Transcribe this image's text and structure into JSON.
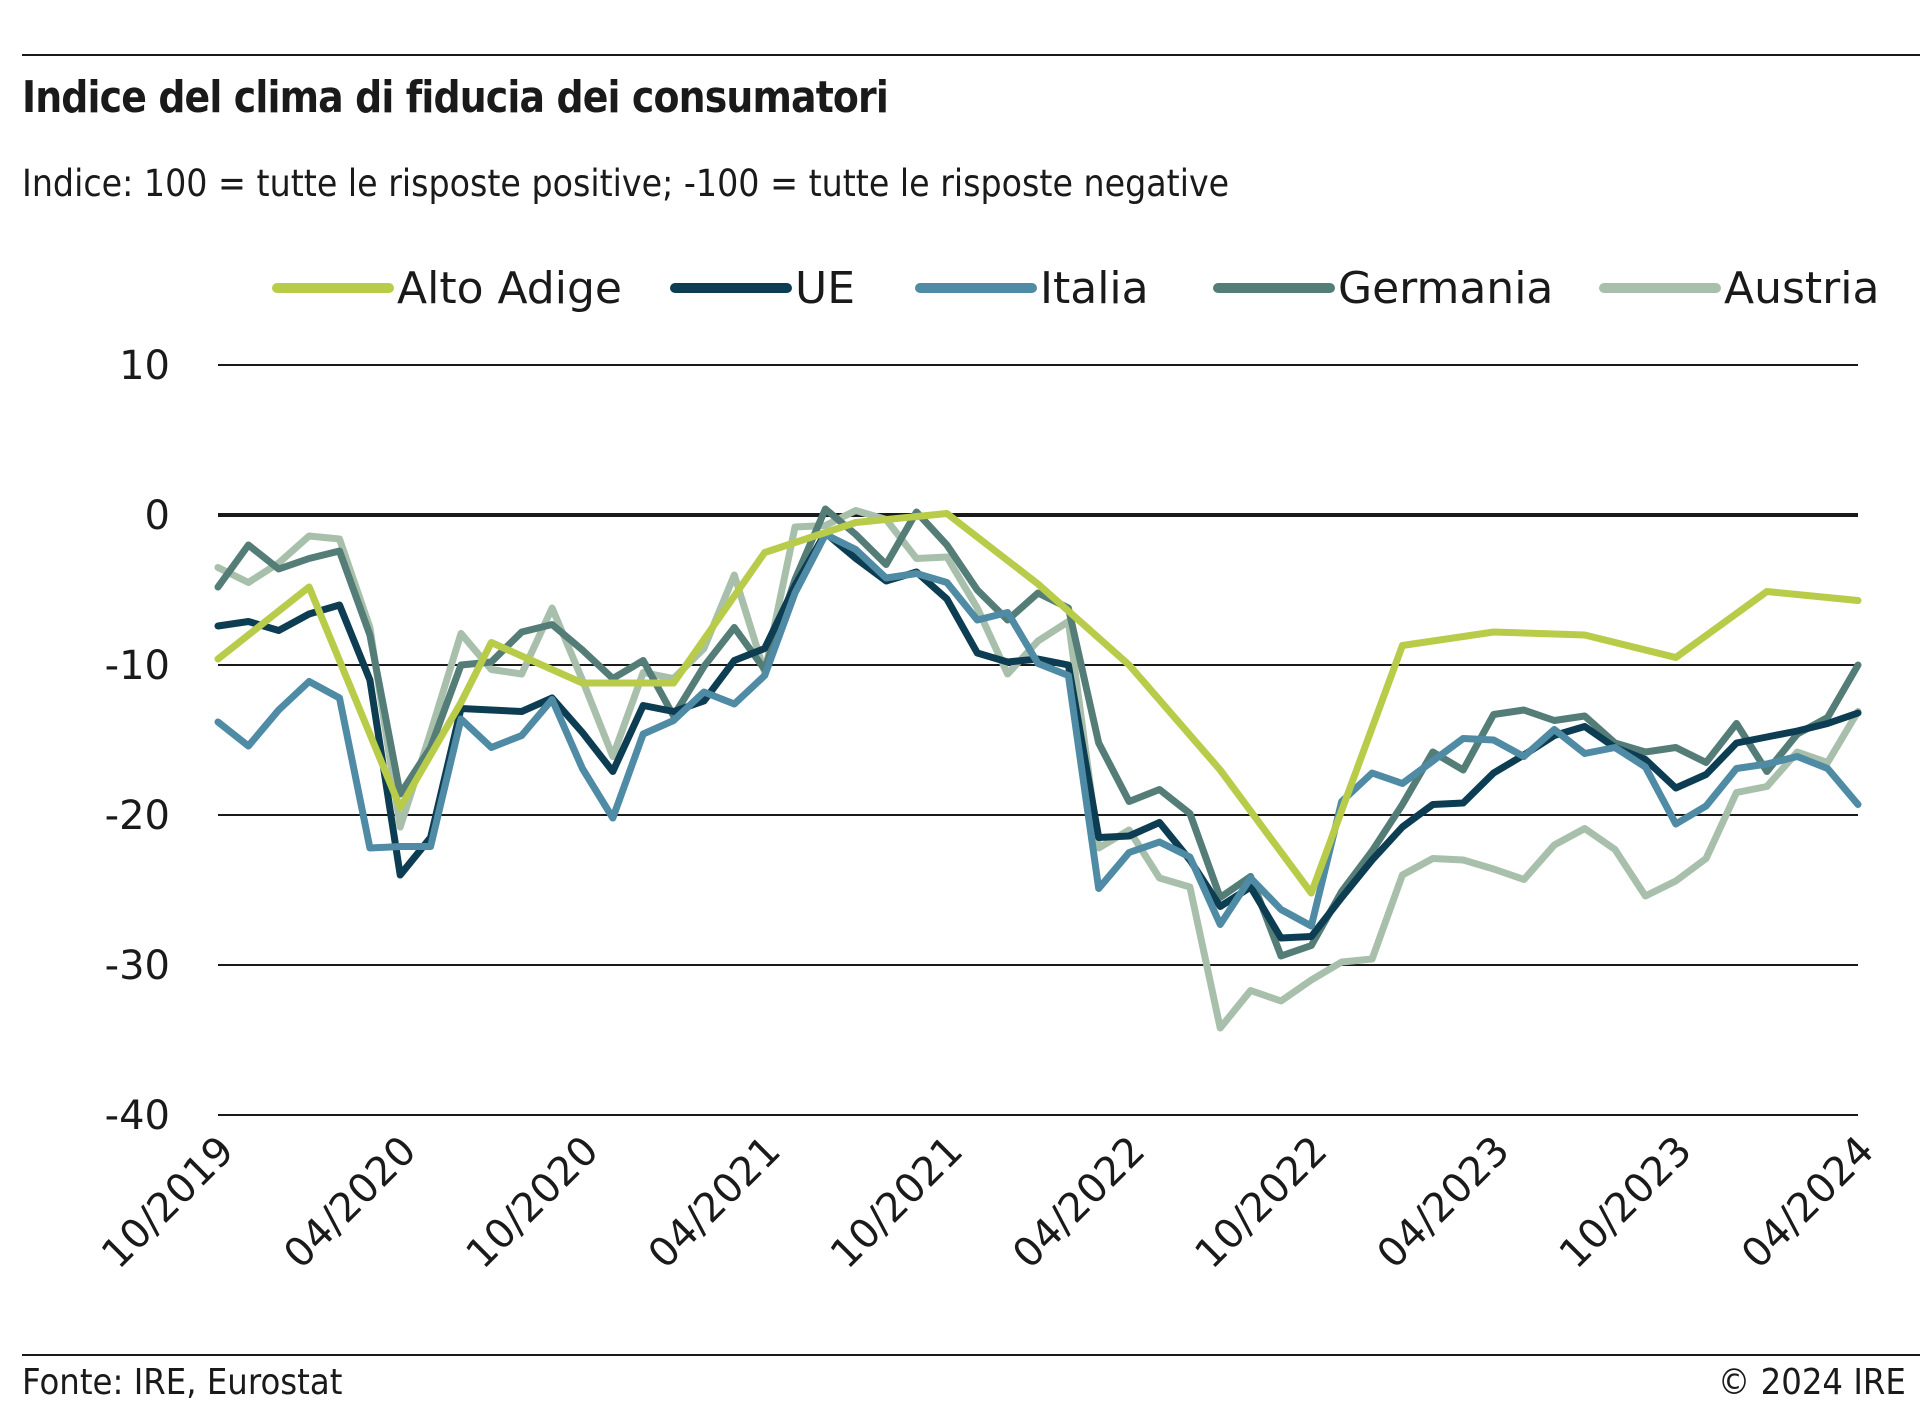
{
  "header": {
    "title": "Indice del clima di fiducia dei consumatori",
    "subtitle": "Indice: 100 = tutte le risposte positive; -100 =  tutte le risposte negative"
  },
  "footer": {
    "source": "Fonte: IRE, Eurostat",
    "copyright": "© 2024 IRE"
  },
  "chart_data": {
    "type": "line",
    "title": "Indice del clima di fiducia dei consumatori",
    "subtitle": "Indice: 100 = tutte le risposte positive; -100 =  tutte le risposte negative",
    "xlabel": "",
    "ylabel": "",
    "ylim": [
      -40,
      10
    ],
    "yticks": [
      10,
      0,
      -10,
      -20,
      -30,
      -40
    ],
    "xlim": [
      "2019-10",
      "2024-04"
    ],
    "xticks": [
      {
        "month": "2019-10",
        "label": "10/2019"
      },
      {
        "month": "2020-04",
        "label": "04/2020"
      },
      {
        "month": "2020-10",
        "label": "10/2020"
      },
      {
        "month": "2021-04",
        "label": "04/2021"
      },
      {
        "month": "2021-10",
        "label": "10/2021"
      },
      {
        "month": "2022-04",
        "label": "04/2022"
      },
      {
        "month": "2022-10",
        "label": "10/2022"
      },
      {
        "month": "2023-04",
        "label": "04/2023"
      },
      {
        "month": "2023-10",
        "label": "10/2023"
      },
      {
        "month": "2024-04",
        "label": "04/2024"
      }
    ],
    "grid": true,
    "legend_position": "top",
    "series": [
      {
        "name": "Alto Adige",
        "color": "#b8cc4a",
        "points": [
          [
            "2019-10",
            -9.6
          ],
          [
            "2020-01",
            -4.8
          ],
          [
            "2020-04",
            -19.5
          ],
          [
            "2020-06",
            -12.5
          ],
          [
            "2020-07",
            -8.5
          ],
          [
            "2020-10",
            -11.2
          ],
          [
            "2021-01",
            -11.2
          ],
          [
            "2021-04",
            -2.5
          ],
          [
            "2021-07",
            -0.5
          ],
          [
            "2021-10",
            0.1
          ],
          [
            "2022-01",
            -4.6
          ],
          [
            "2022-04",
            -10.0
          ],
          [
            "2022-07",
            -17.0
          ],
          [
            "2022-10",
            -25.2
          ],
          [
            "2023-01",
            -8.7
          ],
          [
            "2023-04",
            -7.8
          ],
          [
            "2023-07",
            -8.0
          ],
          [
            "2023-10",
            -9.5
          ],
          [
            "2024-01",
            -5.1
          ],
          [
            "2024-04",
            -5.7
          ]
        ]
      },
      {
        "name": "UE",
        "color": "#0d3d52",
        "points": [
          [
            "2019-10",
            -7.4
          ],
          [
            "2019-11",
            -7.1
          ],
          [
            "2019-12",
            -7.7
          ],
          [
            "2020-01",
            -6.6
          ],
          [
            "2020-02",
            -6.0
          ],
          [
            "2020-03",
            -11.0
          ],
          [
            "2020-04",
            -24.0
          ],
          [
            "2020-05",
            -21.5
          ],
          [
            "2020-06",
            -12.9
          ],
          [
            "2020-07",
            -13.0
          ],
          [
            "2020-08",
            -13.1
          ],
          [
            "2020-09",
            -12.2
          ],
          [
            "2020-10",
            -14.5
          ],
          [
            "2020-11",
            -17.1
          ],
          [
            "2020-12",
            -12.7
          ],
          [
            "2021-01",
            -13.1
          ],
          [
            "2021-02",
            -12.4
          ],
          [
            "2021-03",
            -9.7
          ],
          [
            "2021-04",
            -8.9
          ],
          [
            "2021-05",
            -4.7
          ],
          [
            "2021-06",
            -1.2
          ],
          [
            "2021-07",
            -2.9
          ],
          [
            "2021-08",
            -4.4
          ],
          [
            "2021-09",
            -3.8
          ],
          [
            "2021-10",
            -5.6
          ],
          [
            "2021-11",
            -9.2
          ],
          [
            "2021-12",
            -9.8
          ],
          [
            "2022-01",
            -9.6
          ],
          [
            "2022-02",
            -10.0
          ],
          [
            "2022-03",
            -21.5
          ],
          [
            "2022-04",
            -21.4
          ],
          [
            "2022-05",
            -20.5
          ],
          [
            "2022-06",
            -23.0
          ],
          [
            "2022-07",
            -26.1
          ],
          [
            "2022-08",
            -24.8
          ],
          [
            "2022-09",
            -28.2
          ],
          [
            "2022-10",
            -28.1
          ],
          [
            "2022-11",
            -25.5
          ],
          [
            "2022-12",
            -23.0
          ],
          [
            "2023-01",
            -20.8
          ],
          [
            "2023-02",
            -19.3
          ],
          [
            "2023-03",
            -19.2
          ],
          [
            "2023-04",
            -17.2
          ],
          [
            "2023-05",
            -16.0
          ],
          [
            "2023-06",
            -14.7
          ],
          [
            "2023-07",
            -14.1
          ],
          [
            "2023-08",
            -15.5
          ],
          [
            "2023-09",
            -16.3
          ],
          [
            "2023-10",
            -18.2
          ],
          [
            "2023-11",
            -17.3
          ],
          [
            "2023-12",
            -15.2
          ],
          [
            "2024-01",
            -14.8
          ],
          [
            "2024-02",
            -14.4
          ],
          [
            "2024-03",
            -13.9
          ],
          [
            "2024-04",
            -13.2
          ]
        ]
      },
      {
        "name": "Italia",
        "color": "#4f8ba5",
        "points": [
          [
            "2019-10",
            -13.8
          ],
          [
            "2019-11",
            -15.4
          ],
          [
            "2019-12",
            -13.0
          ],
          [
            "2020-01",
            -11.1
          ],
          [
            "2020-02",
            -12.2
          ],
          [
            "2020-03",
            -22.2
          ],
          [
            "2020-04",
            -22.1
          ],
          [
            "2020-05",
            -22.1
          ],
          [
            "2020-06",
            -13.6
          ],
          [
            "2020-07",
            -15.5
          ],
          [
            "2020-08",
            -14.7
          ],
          [
            "2020-09",
            -12.3
          ],
          [
            "2020-10",
            -16.9
          ],
          [
            "2020-11",
            -20.2
          ],
          [
            "2020-12",
            -14.6
          ],
          [
            "2021-01",
            -13.7
          ],
          [
            "2021-02",
            -11.8
          ],
          [
            "2021-03",
            -12.6
          ],
          [
            "2021-04",
            -10.7
          ],
          [
            "2021-05",
            -5.2
          ],
          [
            "2021-06",
            -1.3
          ],
          [
            "2021-07",
            -2.3
          ],
          [
            "2021-08",
            -4.2
          ],
          [
            "2021-09",
            -3.9
          ],
          [
            "2021-10",
            -4.5
          ],
          [
            "2021-11",
            -7.0
          ],
          [
            "2021-12",
            -6.5
          ],
          [
            "2022-01",
            -9.9
          ],
          [
            "2022-02",
            -10.7
          ],
          [
            "2022-03",
            -24.9
          ],
          [
            "2022-04",
            -22.5
          ],
          [
            "2022-05",
            -21.8
          ],
          [
            "2022-06",
            -22.8
          ],
          [
            "2022-07",
            -27.3
          ],
          [
            "2022-08",
            -24.2
          ],
          [
            "2022-09",
            -26.3
          ],
          [
            "2022-10",
            -27.4
          ],
          [
            "2022-11",
            -19.1
          ],
          [
            "2022-12",
            -17.2
          ],
          [
            "2023-01",
            -17.9
          ],
          [
            "2023-02",
            -16.4
          ],
          [
            "2023-03",
            -14.9
          ],
          [
            "2023-04",
            -15.0
          ],
          [
            "2023-05",
            -16.1
          ],
          [
            "2023-06",
            -14.3
          ],
          [
            "2023-07",
            -15.9
          ],
          [
            "2023-08",
            -15.5
          ],
          [
            "2023-09",
            -16.8
          ],
          [
            "2023-10",
            -20.6
          ],
          [
            "2023-11",
            -19.4
          ],
          [
            "2023-12",
            -16.9
          ],
          [
            "2024-01",
            -16.6
          ],
          [
            "2024-02",
            -16.1
          ],
          [
            "2024-03",
            -16.9
          ],
          [
            "2024-04",
            -19.3
          ]
        ]
      },
      {
        "name": "Germania",
        "color": "#557d77",
        "points": [
          [
            "2019-10",
            -4.8
          ],
          [
            "2019-11",
            -2.0
          ],
          [
            "2019-12",
            -3.6
          ],
          [
            "2020-01",
            -2.9
          ],
          [
            "2020-02",
            -2.4
          ],
          [
            "2020-03",
            -8.0
          ],
          [
            "2020-04",
            -18.6
          ],
          [
            "2020-05",
            -15.5
          ],
          [
            "2020-06",
            -10.0
          ],
          [
            "2020-07",
            -9.8
          ],
          [
            "2020-08",
            -7.8
          ],
          [
            "2020-09",
            -7.3
          ],
          [
            "2020-10",
            -9.0
          ],
          [
            "2020-11",
            -10.9
          ],
          [
            "2020-12",
            -9.7
          ],
          [
            "2021-01",
            -13.4
          ],
          [
            "2021-02",
            -10.1
          ],
          [
            "2021-03",
            -7.5
          ],
          [
            "2021-04",
            -10.3
          ],
          [
            "2021-05",
            -4.3
          ],
          [
            "2021-06",
            0.4
          ],
          [
            "2021-07",
            -1.3
          ],
          [
            "2021-08",
            -3.3
          ],
          [
            "2021-09",
            0.2
          ],
          [
            "2021-10",
            -2.0
          ],
          [
            "2021-11",
            -5.0
          ],
          [
            "2021-12",
            -7.0
          ],
          [
            "2022-01",
            -5.2
          ],
          [
            "2022-02",
            -6.2
          ],
          [
            "2022-03",
            -15.2
          ],
          [
            "2022-04",
            -19.1
          ],
          [
            "2022-05",
            -18.3
          ],
          [
            "2022-06",
            -19.9
          ],
          [
            "2022-07",
            -25.5
          ],
          [
            "2022-08",
            -24.1
          ],
          [
            "2022-09",
            -29.4
          ],
          [
            "2022-10",
            -28.7
          ],
          [
            "2022-11",
            -25.1
          ],
          [
            "2022-12",
            -22.4
          ],
          [
            "2023-01",
            -19.3
          ],
          [
            "2023-02",
            -15.8
          ],
          [
            "2023-03",
            -17.0
          ],
          [
            "2023-04",
            -13.3
          ],
          [
            "2023-05",
            -13.0
          ],
          [
            "2023-06",
            -13.7
          ],
          [
            "2023-07",
            -13.4
          ],
          [
            "2023-08",
            -15.2
          ],
          [
            "2023-09",
            -15.8
          ],
          [
            "2023-10",
            -15.5
          ],
          [
            "2023-11",
            -16.5
          ],
          [
            "2023-12",
            -13.9
          ],
          [
            "2024-01",
            -17.1
          ],
          [
            "2024-02",
            -14.6
          ],
          [
            "2024-03",
            -13.5
          ],
          [
            "2024-04",
            -10.0
          ]
        ]
      },
      {
        "name": "Austria",
        "color": "#a8c0ab",
        "points": [
          [
            "2019-10",
            -3.5
          ],
          [
            "2019-11",
            -4.5
          ],
          [
            "2019-12",
            -3.2
          ],
          [
            "2020-01",
            -1.4
          ],
          [
            "2020-02",
            -1.6
          ],
          [
            "2020-03",
            -7.5
          ],
          [
            "2020-04",
            -20.8
          ],
          [
            "2020-05",
            -14.5
          ],
          [
            "2020-06",
            -7.9
          ],
          [
            "2020-07",
            -10.3
          ],
          [
            "2020-08",
            -10.6
          ],
          [
            "2020-09",
            -6.2
          ],
          [
            "2020-10",
            -11.0
          ],
          [
            "2020-11",
            -16.1
          ],
          [
            "2020-12",
            -10.5
          ],
          [
            "2021-01",
            -10.9
          ],
          [
            "2021-02",
            -8.9
          ],
          [
            "2021-03",
            -4.0
          ],
          [
            "2021-04",
            -10.5
          ],
          [
            "2021-05",
            -0.8
          ],
          [
            "2021-06",
            -0.7
          ],
          [
            "2021-07",
            0.3
          ],
          [
            "2021-08",
            -0.3
          ],
          [
            "2021-09",
            -2.9
          ],
          [
            "2021-10",
            -2.8
          ],
          [
            "2021-11",
            -6.2
          ],
          [
            "2021-12",
            -10.6
          ],
          [
            "2022-01",
            -8.4
          ],
          [
            "2022-02",
            -7.1
          ],
          [
            "2022-03",
            -22.2
          ],
          [
            "2022-04",
            -21.0
          ],
          [
            "2022-05",
            -24.2
          ],
          [
            "2022-06",
            -24.8
          ],
          [
            "2022-07",
            -34.2
          ],
          [
            "2022-08",
            -31.7
          ],
          [
            "2022-09",
            -32.4
          ],
          [
            "2022-10",
            -31.0
          ],
          [
            "2022-11",
            -29.8
          ],
          [
            "2022-12",
            -29.6
          ],
          [
            "2023-01",
            -24.0
          ],
          [
            "2023-02",
            -22.9
          ],
          [
            "2023-03",
            -23.0
          ],
          [
            "2023-04",
            -23.6
          ],
          [
            "2023-05",
            -24.3
          ],
          [
            "2023-06",
            -22.0
          ],
          [
            "2023-07",
            -20.9
          ],
          [
            "2023-08",
            -22.3
          ],
          [
            "2023-09",
            -25.4
          ],
          [
            "2023-10",
            -24.4
          ],
          [
            "2023-11",
            -22.9
          ],
          [
            "2023-12",
            -18.5
          ],
          [
            "2024-01",
            -18.1
          ],
          [
            "2024-02",
            -15.8
          ],
          [
            "2024-03",
            -16.5
          ],
          [
            "2024-04",
            -13.1
          ]
        ]
      }
    ]
  }
}
